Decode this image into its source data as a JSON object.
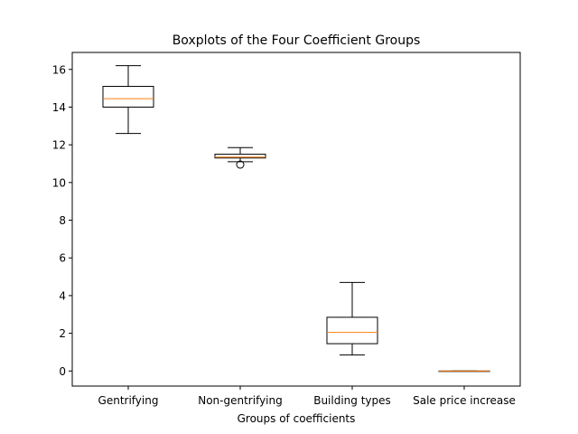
{
  "chart_data": {
    "type": "boxplot",
    "title": "Boxplots of the Four Coefficient Groups",
    "xlabel": "Groups of coefficients",
    "ylabel": "",
    "categories": [
      "Gentrifying",
      "Non-gentrifying",
      "Building types",
      "Sale price increase"
    ],
    "ylim": [
      -0.8,
      16.9
    ],
    "yticks": [
      0,
      2,
      4,
      6,
      8,
      10,
      12,
      14,
      16
    ],
    "grid": false,
    "boxes": [
      {
        "category": "Gentrifying",
        "whisker_low": 12.6,
        "q1": 14.0,
        "median": 14.45,
        "q3": 15.1,
        "whisker_high": 16.2,
        "outliers": []
      },
      {
        "category": "Non-gentrifying",
        "whisker_low": 11.1,
        "q1": 11.3,
        "median": 11.35,
        "q3": 11.5,
        "whisker_high": 11.85,
        "outliers": [
          10.95
        ]
      },
      {
        "category": "Building types",
        "whisker_low": 0.85,
        "q1": 1.45,
        "median": 2.05,
        "q3": 2.85,
        "whisker_high": 4.7,
        "outliers": []
      },
      {
        "category": "Sale price increase",
        "whisker_low": 0.0,
        "q1": 0.0,
        "median": 0.0,
        "q3": 0.0,
        "whisker_high": 0.0,
        "outliers": []
      }
    ],
    "colors": {
      "box": "#000000",
      "median": "#ff7f0e",
      "axes": "#000000"
    }
  }
}
